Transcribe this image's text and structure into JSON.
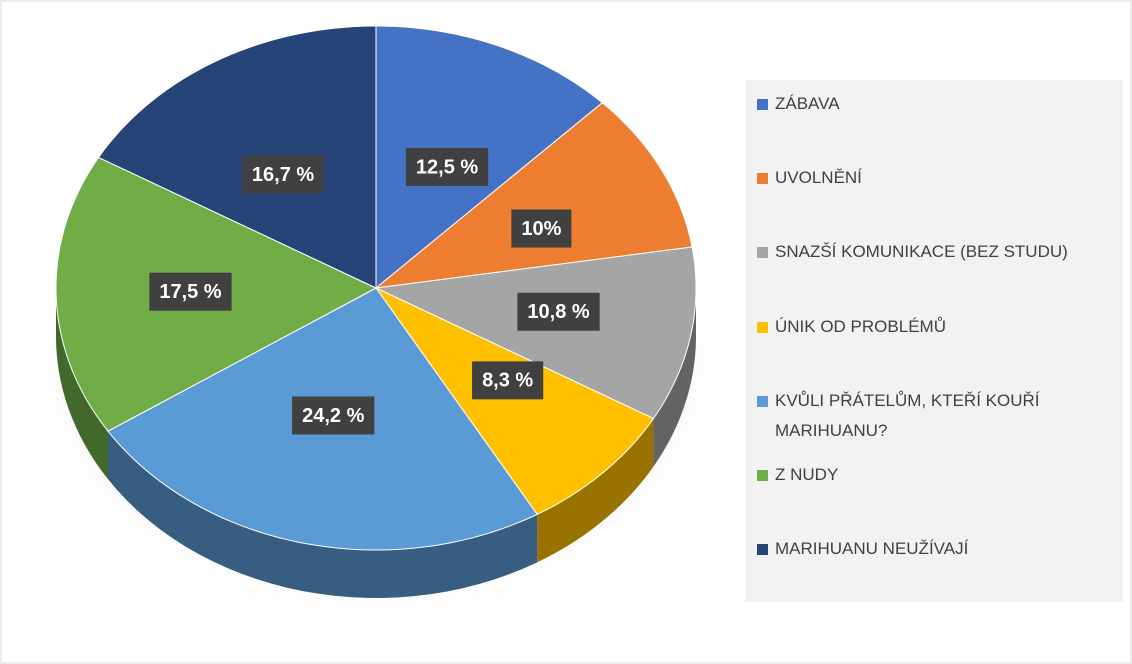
{
  "chart_data": {
    "type": "pie",
    "categories": [
      "ZÁBAVA",
      "UVOLNĚNÍ",
      "SNAZŠÍ KOMUNIKACE (BEZ STUDU)",
      "ÚNIK OD PROBLÉMŮ",
      "KVŮLI PŘÁTELŮM, KTEŘÍ KOUŘÍ MARIHUANU?",
      "Z NUDY",
      "MARIHUANU NEUŽÍVAJÍ"
    ],
    "values": [
      12.5,
      10,
      10.8,
      8.3,
      24.2,
      17.5,
      16.7
    ],
    "value_labels": [
      "12,5 %",
      "10%",
      "10,8 %",
      "8,3 %",
      "24,2 %",
      "17,5 %",
      "16,7 %"
    ],
    "colors": [
      "#4472c4",
      "#ed7d31",
      "#a5a5a5",
      "#ffc000",
      "#5b9bd5",
      "#70ad47",
      "#264478"
    ],
    "legend": "right"
  }
}
